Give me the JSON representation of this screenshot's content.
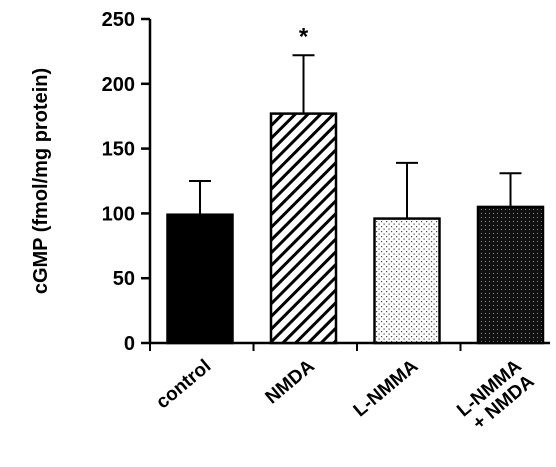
{
  "chart_data": {
    "type": "bar",
    "ylabel": "cGMP (fmol/mg protein)",
    "ylim": [
      0,
      250
    ],
    "yticks": [
      0,
      50,
      100,
      150,
      200,
      250
    ],
    "categories": [
      "control",
      "NMDA",
      "L-NMMA",
      "L-NMMA\n+ NMDA"
    ],
    "category_lines": [
      [
        "control"
      ],
      [
        "NMDA"
      ],
      [
        "L-NMMA"
      ],
      [
        "L-NMMA",
        "+ NMDA"
      ]
    ],
    "values": [
      99,
      177,
      96,
      105
    ],
    "error_upper": [
      125,
      222,
      139,
      131
    ],
    "fills": [
      "solid-black",
      "diagonal-hatch",
      "light-dots",
      "dark-dots"
    ],
    "annotations": [
      {
        "category": "NMDA",
        "text": "*"
      }
    ],
    "grid": false,
    "legend": "none"
  }
}
